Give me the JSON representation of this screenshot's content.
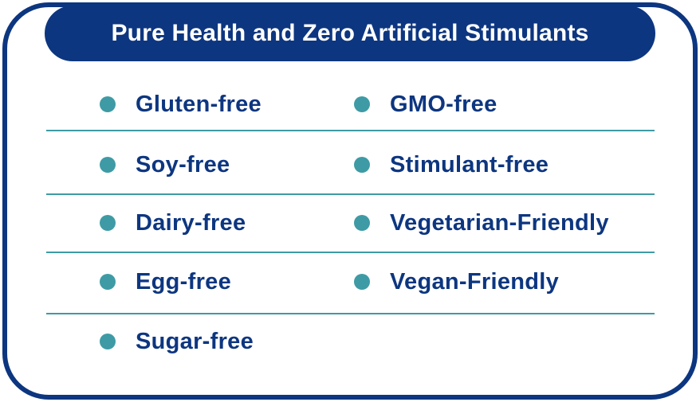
{
  "header": {
    "title": "Pure Health and Zero Artificial Stimulants"
  },
  "colors": {
    "navy": "#0d3680",
    "teal": "#3e9ba5",
    "background": "#ffffff"
  },
  "icon": "bullet-dot",
  "left_items": [
    "Gluten-free",
    "Soy-free",
    "Dairy-free",
    "Egg-free",
    "Sugar-free"
  ],
  "right_items": [
    "GMO-free",
    "Stimulant-free",
    "Vegetarian-Friendly",
    "Vegan-Friendly"
  ]
}
